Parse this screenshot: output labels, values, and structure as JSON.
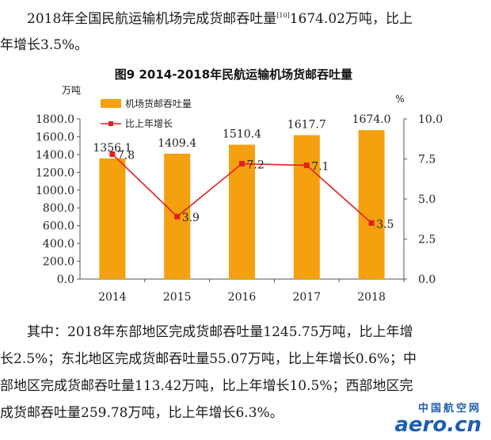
{
  "intro": {
    "text_a": "2018年全国民航运输机场完成货邮吞吐量",
    "footnote": "[10]",
    "text_b": "1674.02万吨，比上",
    "line2": "年增长3.5%。"
  },
  "chart_data": {
    "type": "bar",
    "title": "图9 2014-2018年民航运输机场货邮吞吐量",
    "categories": [
      "2014",
      "2015",
      "2016",
      "2017",
      "2018"
    ],
    "series": [
      {
        "name": "机场货邮吞吐量",
        "type": "bar",
        "axis": "left",
        "values": [
          1356.1,
          1409.4,
          1510.4,
          1617.7,
          1674.0
        ],
        "labels": [
          "1356.1",
          "1409.4",
          "1510.4",
          "1617.7",
          "1674.0"
        ]
      },
      {
        "name": "比上年增长",
        "type": "line",
        "axis": "right",
        "values": [
          7.8,
          3.9,
          7.2,
          7.1,
          3.5
        ],
        "labels": [
          "7.8",
          "3.9",
          "7.2",
          "7.1",
          "3.5"
        ]
      }
    ],
    "ylabel_left": "万吨",
    "ylabel_right": "%",
    "ylim_left": [
      0,
      1800
    ],
    "yticks_left": [
      "0.0",
      "200.0",
      "400.0",
      "600.0",
      "800.0",
      "1000.0",
      "1200.0",
      "1400.0",
      "1600.0",
      "1800.0"
    ],
    "ylim_right": [
      0,
      10
    ],
    "yticks_right": [
      "0.0",
      "2.5",
      "5.0",
      "7.5",
      "10.0"
    ],
    "legend_position": "top-left",
    "grid": false,
    "colors": {
      "bar": "#f5a00f",
      "line": "#e02020"
    }
  },
  "body": {
    "line1": "其中：2018年东部地区完成货邮吞吐量1245.75万吨，比上年增",
    "line2": "长2.5%；东北地区完成货邮吞吐量55.07万吨，比上年增长0.6%；中",
    "line3": "部地区完成货邮吞吐量113.42万吨，比上年增长10.5%；西部地区完",
    "line4": "成货邮吞吐量259.78万吨，比上年增长6.3%。"
  },
  "watermark": {
    "cn": "中国航空网",
    "en": "aero.cn"
  }
}
